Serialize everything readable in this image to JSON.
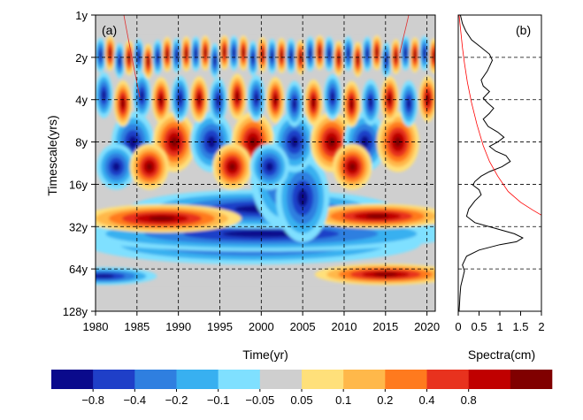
{
  "chart_data": [
    {
      "panel_label": "(a)",
      "type": "heatmap",
      "subtype": "wavelet power spectrum",
      "xlabel": "Time(yr)",
      "ylabel": "Timescale(yrs)",
      "xlim": [
        1980,
        2021
      ],
      "x_ticks": [
        "1980",
        "1985",
        "1990",
        "1995",
        "2000",
        "2005",
        "2010",
        "2015",
        "2020"
      ],
      "y_ticks": [
        "1y",
        "2y",
        "4y",
        "8y",
        "16y",
        "32y",
        "64y",
        "128y"
      ],
      "y_scale": "log2",
      "grid": "dashed",
      "colorbar": {
        "colors": [
          "#0a0a8c",
          "#1f3fc8",
          "#2f7fe0",
          "#38b0f0",
          "#7fe0ff",
          "#cfcfcf",
          "#ffe07a",
          "#ffb84a",
          "#ff7a1e",
          "#e8321e",
          "#c00000",
          "#800000"
        ],
        "tick_labels": [
          "−0.8",
          "−0.4",
          "−0.2",
          "−0.1",
          "−0.05",
          "0.05",
          "0.1",
          "0.2",
          "0.4",
          "0.8"
        ]
      }
    },
    {
      "panel_label": "(b)",
      "type": "line",
      "xlabel": "Spectra(cm)",
      "x_ticks": [
        "0",
        "0.5",
        "1",
        "1.5",
        "2"
      ],
      "xlim": [
        0,
        2
      ],
      "grid": "dashed",
      "series": [
        {
          "color": "#000000",
          "points": [
            [
              0.05,
              1
            ],
            [
              0.1,
              1.15
            ],
            [
              0.18,
              1.3
            ],
            [
              0.32,
              1.5
            ],
            [
              0.55,
              1.7
            ],
            [
              0.75,
              1.9
            ],
            [
              0.82,
              2.1
            ],
            [
              0.7,
              2.5
            ],
            [
              0.55,
              2.9
            ],
            [
              0.6,
              3.2
            ],
            [
              0.75,
              3.5
            ],
            [
              0.6,
              3.9
            ],
            [
              0.7,
              4.2
            ],
            [
              0.85,
              4.6
            ],
            [
              0.75,
              5.0
            ],
            [
              0.6,
              5.5
            ],
            [
              0.72,
              6.2
            ],
            [
              0.95,
              6.8
            ],
            [
              1.1,
              7.4
            ],
            [
              0.95,
              8.0
            ],
            [
              0.75,
              8.6
            ],
            [
              0.9,
              9.3
            ],
            [
              1.15,
              10
            ],
            [
              1.25,
              11
            ],
            [
              1.05,
              12
            ],
            [
              0.75,
              13
            ],
            [
              0.55,
              14
            ],
            [
              0.4,
              15.3
            ],
            [
              0.35,
              16.2
            ],
            [
              0.5,
              17.5
            ],
            [
              0.55,
              19
            ],
            [
              0.4,
              21
            ],
            [
              0.25,
              24
            ],
            [
              0.2,
              27
            ],
            [
              0.4,
              30
            ],
            [
              0.9,
              33
            ],
            [
              1.35,
              36
            ],
            [
              1.55,
              38.5
            ],
            [
              1.4,
              41
            ],
            [
              1.0,
              43
            ],
            [
              0.5,
              47
            ],
            [
              0.2,
              52
            ],
            [
              0.1,
              60
            ],
            [
              0.15,
              66
            ],
            [
              0.12,
              72
            ],
            [
              0.06,
              85
            ],
            [
              0.04,
              100
            ],
            [
              0.03,
              115
            ],
            [
              0.02,
              128
            ]
          ]
        },
        {
          "color": "#ff0000",
          "points": [
            [
              0.02,
              1
            ],
            [
              0.06,
              1.3
            ],
            [
              0.1,
              1.7
            ],
            [
              0.15,
              2.2
            ],
            [
              0.22,
              3
            ],
            [
              0.32,
              4.2
            ],
            [
              0.45,
              6
            ],
            [
              0.6,
              8.5
            ],
            [
              0.75,
              11
            ],
            [
              0.95,
              14
            ],
            [
              1.2,
              18
            ],
            [
              1.5,
              21.5
            ],
            [
              1.8,
              24.5
            ],
            [
              2.0,
              26.5
            ]
          ]
        }
      ]
    }
  ]
}
